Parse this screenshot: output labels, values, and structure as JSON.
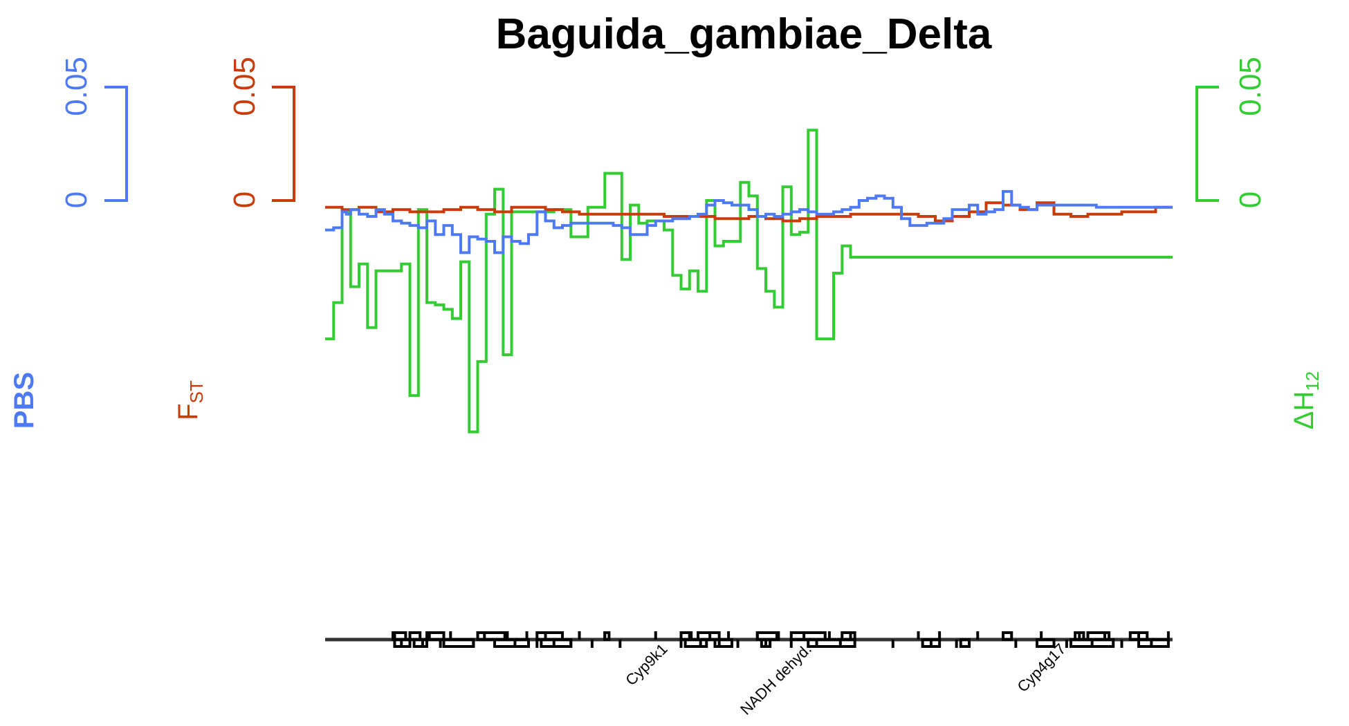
{
  "chart_data": {
    "type": "line",
    "title": "Baguida_gambiae_Delta",
    "colors": {
      "pbs": "#4d79f5",
      "fst": "#c83c0a",
      "h12": "#33cc33"
    },
    "axes": {
      "pbs": {
        "label": "PBS",
        "ylim": [
          0,
          0.05
        ],
        "ticks": [
          "0.05",
          "0"
        ]
      },
      "fst": {
        "label_main": "F",
        "label_sub": "ST",
        "ylim": [
          0,
          0.05
        ],
        "ticks": [
          "0.05",
          "0"
        ]
      },
      "h12": {
        "label_main": "ΔH",
        "label_sub": "12",
        "ylim": [
          0,
          0.05
        ],
        "ticks": [
          "0.05",
          "0"
        ]
      }
    },
    "x_range": [
      0,
      100
    ],
    "series": [
      {
        "name": "PBS",
        "key": "pbs",
        "step": true,
        "x": [
          0,
          1,
          2,
          2.5,
          3,
          4,
          5,
          6,
          7,
          8,
          9,
          10,
          11,
          12,
          13,
          14,
          15,
          16,
          17,
          18,
          19,
          20,
          21,
          22,
          23,
          24,
          25,
          26,
          27,
          28,
          29,
          30,
          31,
          32,
          33,
          34,
          35,
          36,
          37,
          38,
          39,
          40,
          41,
          42,
          43,
          44,
          45,
          46,
          47,
          48,
          49,
          50,
          51,
          52,
          53,
          54,
          55,
          56,
          57,
          58,
          59,
          60,
          61,
          62,
          63,
          64,
          65,
          66,
          67,
          68,
          69,
          70,
          71,
          72,
          73,
          74,
          75,
          76,
          77,
          78,
          79,
          80,
          81,
          82,
          83,
          84,
          85,
          86,
          87,
          88,
          89,
          90,
          91,
          92,
          93,
          94,
          95,
          96,
          97,
          98,
          99,
          100
        ],
        "y": [
          -0.013,
          -0.012,
          -0.005,
          -0.006,
          -0.004,
          -0.006,
          -0.007,
          -0.004,
          -0.006,
          -0.009,
          -0.01,
          -0.011,
          -0.012,
          -0.009,
          -0.015,
          -0.011,
          -0.015,
          -0.023,
          -0.016,
          -0.017,
          -0.018,
          -0.023,
          -0.016,
          -0.018,
          -0.019,
          -0.015,
          -0.005,
          -0.009,
          -0.012,
          -0.011,
          -0.01,
          -0.01,
          -0.01,
          -0.01,
          -0.01,
          -0.011,
          -0.012,
          -0.015,
          -0.015,
          -0.011,
          -0.009,
          -0.009,
          -0.008,
          -0.008,
          -0.007,
          -0.006,
          -0.002,
          0.0,
          -0.001,
          -0.002,
          -0.002,
          -0.004,
          -0.007,
          -0.006,
          -0.007,
          -0.006,
          -0.005,
          -0.004,
          -0.005,
          -0.006,
          -0.006,
          -0.005,
          -0.004,
          -0.003,
          0.0,
          0.001,
          0.002,
          0.001,
          -0.003,
          -0.008,
          -0.011,
          -0.011,
          -0.01,
          -0.01,
          -0.008,
          -0.004,
          -0.004,
          -0.002,
          -0.006,
          -0.005,
          -0.004,
          0.004,
          -0.002,
          -0.003,
          -0.004,
          -0.002,
          -0.002,
          -0.002,
          -0.002,
          -0.002,
          -0.002,
          -0.002,
          -0.003,
          -0.003,
          -0.003,
          -0.003,
          -0.003,
          -0.003,
          -0.003,
          -0.003,
          -0.003,
          -0.003
        ]
      },
      {
        "name": "FST",
        "key": "fst",
        "step": true,
        "x": [
          0,
          2,
          4,
          6,
          8,
          10,
          12,
          14,
          16,
          18,
          20,
          22,
          24,
          26,
          28,
          30,
          32,
          34,
          36,
          38,
          40,
          42,
          44,
          46,
          48,
          50,
          52,
          54,
          56,
          58,
          60,
          62,
          64,
          66,
          68,
          70,
          72,
          74,
          76,
          78,
          80,
          82,
          84,
          86,
          88,
          90,
          92,
          94,
          96,
          98,
          100
        ],
        "y": [
          -0.003,
          -0.004,
          -0.003,
          -0.005,
          -0.004,
          -0.005,
          -0.005,
          -0.004,
          -0.003,
          -0.004,
          -0.005,
          -0.003,
          -0.003,
          -0.004,
          -0.005,
          -0.006,
          -0.006,
          -0.006,
          -0.006,
          -0.006,
          -0.007,
          -0.007,
          -0.007,
          -0.008,
          -0.008,
          -0.007,
          -0.008,
          -0.009,
          -0.008,
          -0.007,
          -0.007,
          -0.006,
          -0.006,
          -0.006,
          -0.006,
          -0.007,
          -0.009,
          -0.007,
          -0.005,
          -0.001,
          -0.002,
          -0.004,
          -0.001,
          -0.006,
          -0.007,
          -0.006,
          -0.006,
          -0.005,
          -0.005,
          -0.003,
          -0.003
        ]
      },
      {
        "name": "ΔH12",
        "key": "h12",
        "step": true,
        "x": [
          0,
          1,
          2,
          3,
          4,
          5,
          6,
          7,
          8,
          9,
          10,
          11,
          12,
          13,
          14,
          15,
          16,
          17,
          18,
          19,
          20,
          21,
          22,
          23,
          24,
          25,
          26,
          27,
          28,
          29,
          30,
          31,
          32,
          33,
          34,
          35,
          36,
          37,
          38,
          39,
          40,
          41,
          42,
          43,
          44,
          45,
          46,
          47,
          48,
          49,
          50,
          51,
          52,
          53,
          54,
          55,
          56,
          57,
          58,
          59,
          60,
          61,
          62,
          63,
          64,
          65,
          66,
          67,
          68,
          69,
          70,
          71,
          72,
          73,
          74,
          75,
          76,
          77,
          78,
          79,
          80,
          81,
          82,
          83,
          84,
          85,
          86,
          87,
          88,
          89,
          90,
          91,
          92,
          93,
          94,
          95,
          96,
          97,
          98,
          99,
          100
        ],
        "y": [
          -0.061,
          -0.045,
          -0.005,
          -0.038,
          -0.028,
          -0.056,
          -0.031,
          -0.031,
          -0.031,
          -0.028,
          -0.086,
          -0.004,
          -0.045,
          -0.046,
          -0.048,
          -0.052,
          -0.027,
          -0.102,
          -0.071,
          -0.006,
          0.005,
          -0.068,
          -0.005,
          -0.005,
          -0.005,
          -0.005,
          -0.005,
          -0.004,
          -0.004,
          -0.016,
          -0.016,
          -0.003,
          -0.003,
          0.012,
          0.012,
          -0.026,
          -0.002,
          -0.01,
          -0.009,
          -0.009,
          -0.013,
          -0.033,
          -0.039,
          -0.031,
          -0.04,
          0.0,
          -0.02,
          -0.018,
          -0.018,
          0.008,
          0.002,
          -0.03,
          -0.04,
          -0.047,
          0.006,
          -0.015,
          -0.014,
          0.031,
          -0.061,
          -0.061,
          -0.032,
          -0.02,
          -0.025,
          -0.025,
          -0.025,
          -0.025,
          -0.025,
          -0.025,
          -0.025,
          -0.025,
          -0.025,
          -0.025,
          -0.025,
          -0.025,
          -0.025,
          -0.025,
          -0.025,
          -0.025,
          -0.025,
          -0.025,
          -0.025,
          -0.025,
          -0.025,
          -0.025,
          -0.025,
          -0.025,
          -0.025,
          -0.025,
          -0.025,
          -0.025,
          -0.025,
          -0.025,
          -0.025,
          -0.025,
          -0.025,
          -0.025,
          -0.025,
          -0.025,
          -0.025,
          -0.025,
          -0.025
        ]
      }
    ],
    "genes": {
      "labels": [
        {
          "text": "Cyp9k1",
          "x": 40.5
        },
        {
          "text": "NADH dehyd.",
          "x": 57.5
        },
        {
          "text": "Cyp4g17",
          "x": 87.5
        }
      ],
      "forward": [
        [
          8.0,
          9.5
        ],
        [
          10.0,
          11.2
        ],
        [
          12.0,
          14.0
        ],
        [
          18.0,
          21.5
        ],
        [
          25.0,
          28.0
        ],
        [
          33.0,
          33.5
        ],
        [
          42.0,
          43.0
        ],
        [
          44.0,
          46.5
        ],
        [
          51.0,
          53.5
        ],
        [
          55.0,
          59.0
        ],
        [
          61.0,
          62.5
        ],
        [
          80.0,
          81.0
        ],
        [
          88.5,
          89.5
        ],
        [
          90.0,
          92.5
        ],
        [
          95.0,
          97.0
        ]
      ],
      "reverse": [
        [
          8.2,
          10.0
        ],
        [
          10.5,
          12.0
        ],
        [
          14.0,
          17.5
        ],
        [
          20.0,
          24.0
        ],
        [
          25.5,
          29.0
        ],
        [
          42.5,
          45.0
        ],
        [
          46.0,
          48.0
        ],
        [
          51.5,
          52.5
        ],
        [
          57.0,
          62.5
        ],
        [
          70.5,
          72.5
        ],
        [
          75.0,
          76.0
        ],
        [
          84.0,
          86.0
        ],
        [
          88.0,
          93.0
        ],
        [
          96.0,
          99.5
        ]
      ],
      "ticks": [
        8.2,
        9.0,
        10.0,
        11.5,
        12.3,
        13.6,
        14.8,
        17.5,
        18.8,
        20.0,
        21.2,
        22.4,
        23.8,
        25.0,
        26.0,
        27.0,
        28.0,
        29.0,
        30.0,
        31.5,
        33.0,
        34.8,
        39.0,
        42.0,
        43.2,
        44.3,
        45.4,
        46.5,
        47.6,
        48.7,
        51.0,
        52.0,
        53.3,
        55.0,
        56.5,
        58.0,
        59.5,
        60.8,
        62.0,
        67.0,
        70.0,
        71.5,
        72.5,
        74.5,
        77.0,
        81.5,
        84.5,
        87.5,
        89.0,
        90.5,
        92.0,
        94.0,
        96.0,
        97.5,
        99.5
      ]
    }
  }
}
